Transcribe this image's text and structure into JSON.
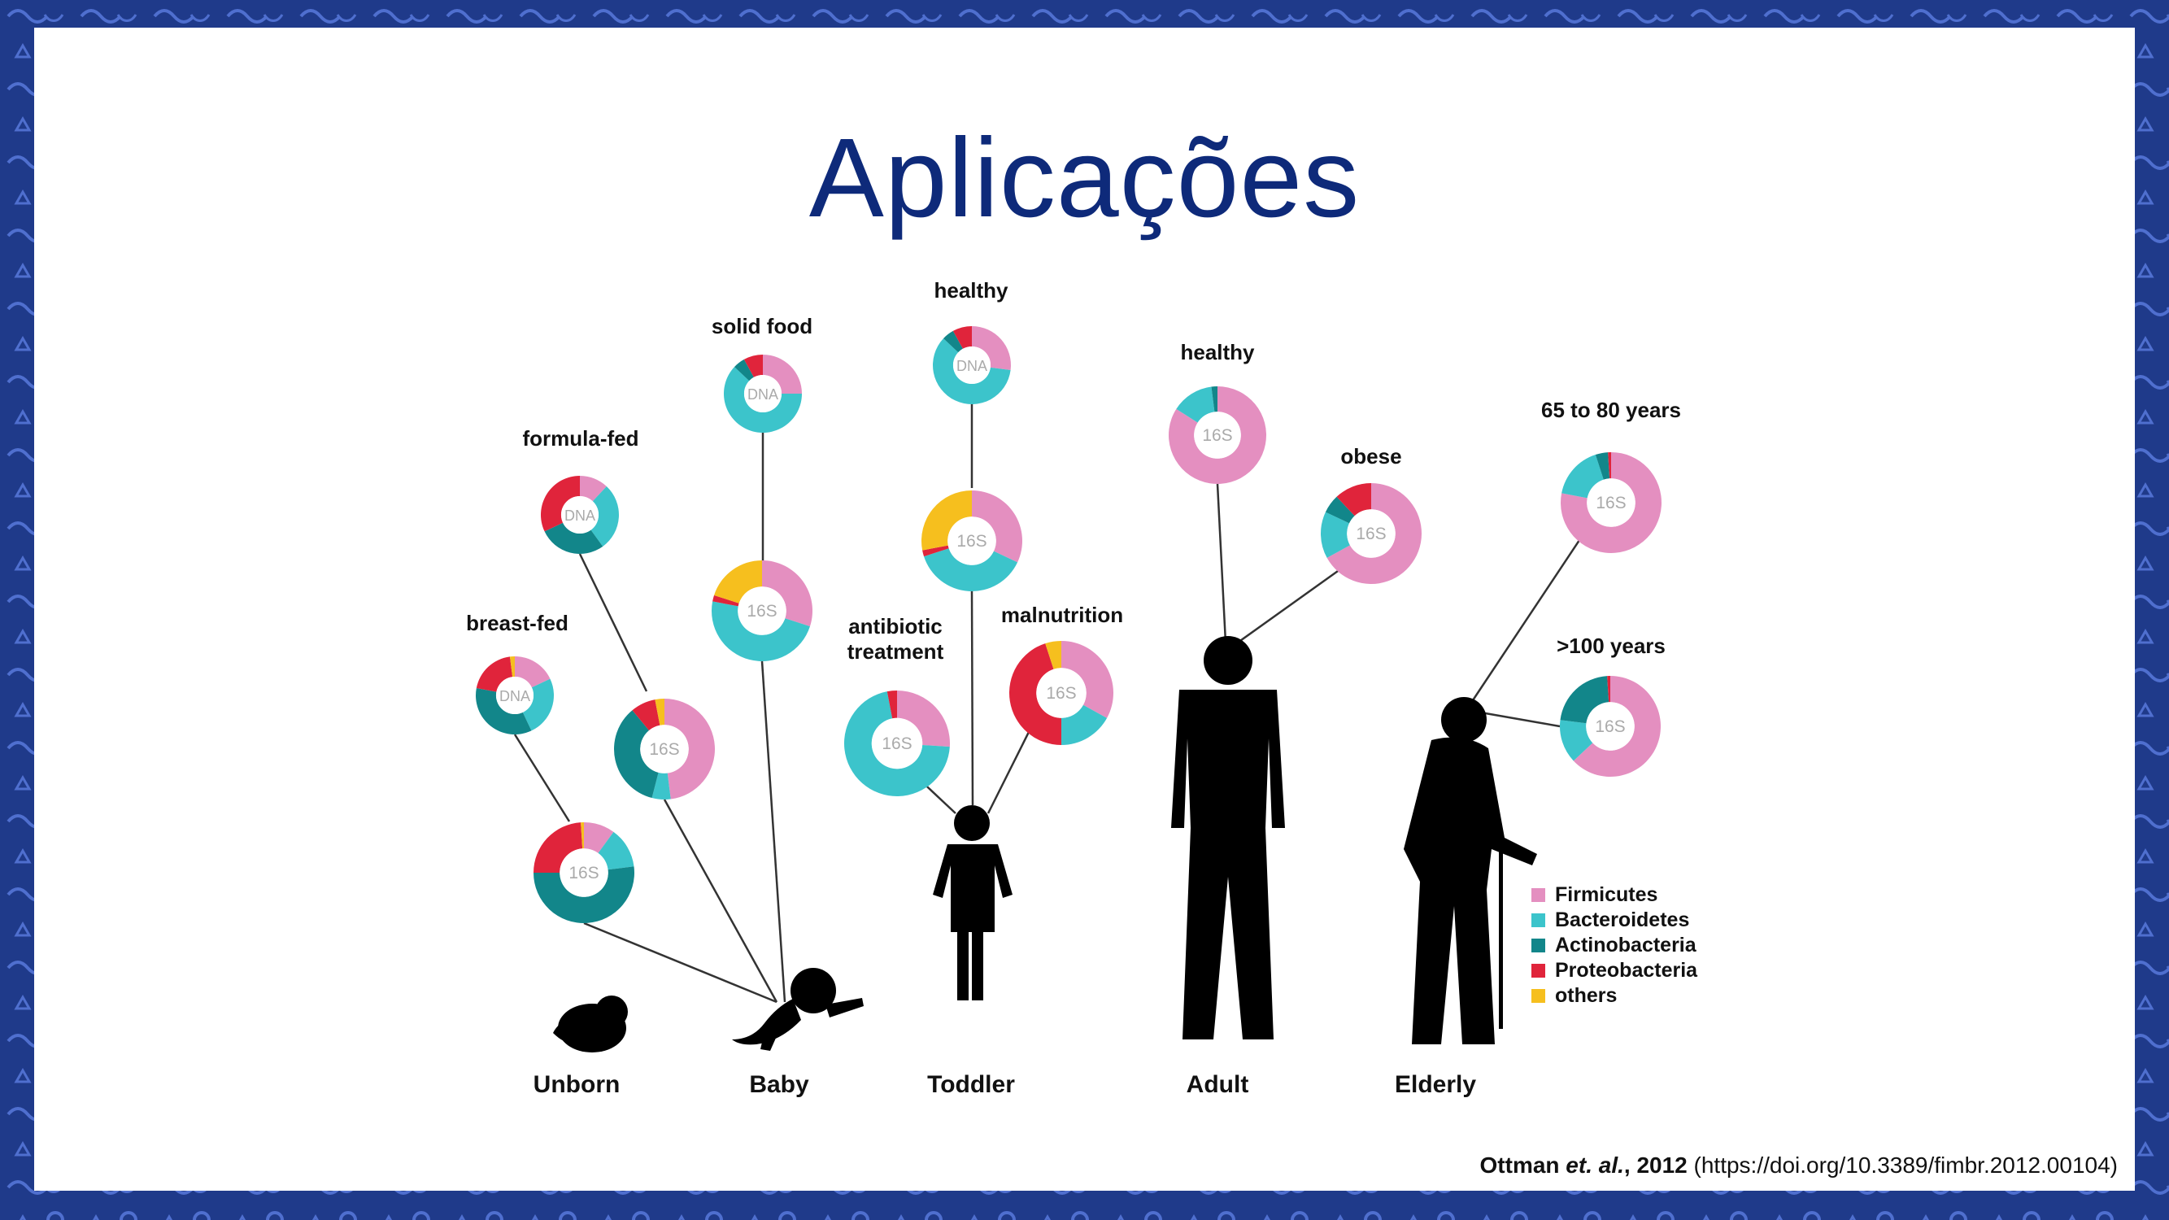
{
  "slide": {
    "title": "Aplicações",
    "citation": {
      "authors": "Ottman",
      "etal": "et. al.",
      "year": ", 2012",
      "doi": " (https://doi.org/10.3389/fimbr.2012.00104)"
    }
  },
  "colors": {
    "Firmicutes": "#e48fc0",
    "Bacteroidetes": "#3cc4cb",
    "Actinobacteria": "#12868a",
    "Proteobacteria": "#e0243b",
    "others": "#f6bf1e",
    "border": "#1f3a8a",
    "title": "#0e2a7a"
  },
  "chart_data": {
    "type": "pie",
    "categories": [
      "Firmicutes",
      "Bacteroidetes",
      "Actinobacteria",
      "Proteobacteria",
      "others"
    ],
    "stages": [
      "Unborn",
      "Baby",
      "Toddler",
      "Adult",
      "Elderly"
    ],
    "legend_position": "bottom-right",
    "donuts": [
      {
        "method": "16S",
        "label": "",
        "values": [
          10,
          13,
          52,
          24,
          1
        ]
      },
      {
        "method": "DNA",
        "label": "breast-fed",
        "values": [
          18,
          25,
          35,
          20,
          2
        ]
      },
      {
        "method": "DNA",
        "label": "formula-fed",
        "values": [
          12,
          28,
          28,
          32,
          0
        ]
      },
      {
        "method": "16S",
        "label": "",
        "values": [
          48,
          6,
          35,
          8,
          3
        ]
      },
      {
        "method": "DNA",
        "label": "solid food",
        "values": [
          25,
          62,
          5,
          8,
          0
        ]
      },
      {
        "method": "16S",
        "label": "",
        "values": [
          30,
          48,
          0,
          2,
          20
        ]
      },
      {
        "method": "DNA",
        "label": "healthy",
        "values": [
          27,
          60,
          5,
          8,
          0
        ]
      },
      {
        "method": "16S",
        "label": "",
        "values": [
          32,
          38,
          0,
          2,
          28
        ]
      },
      {
        "method": "16S",
        "label": "antibiotic\ntreatment",
        "values": [
          26,
          71,
          0,
          3,
          0
        ]
      },
      {
        "method": "16S",
        "label": "malnutrition",
        "values": [
          33,
          17,
          0,
          45,
          5
        ]
      },
      {
        "method": "16S",
        "label": "healthy",
        "values": [
          84,
          14,
          2,
          0,
          0
        ]
      },
      {
        "method": "16S",
        "label": "obese",
        "values": [
          67,
          15,
          6,
          12,
          0
        ]
      },
      {
        "method": "16S",
        "label": "65 to 80 years",
        "values": [
          78,
          17,
          4,
          1,
          0
        ]
      },
      {
        "method": "16S",
        "label": ">100 years",
        "values": [
          63,
          14,
          22,
          1,
          0
        ]
      }
    ]
  }
}
